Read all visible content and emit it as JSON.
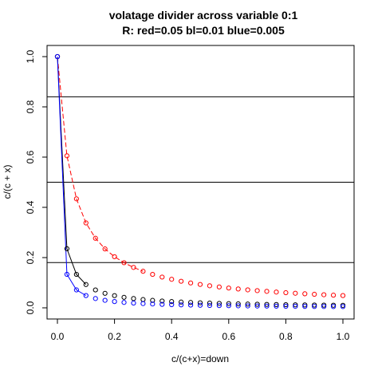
{
  "chart_data": {
    "type": "scatter",
    "title": "volatage divider across variable 0:1",
    "subtitle": "R: red=0.05 bl=0.01 blue=0.005",
    "xlabel": "c/(c+x)=down",
    "ylabel": "c/(c + x)",
    "xlim": [
      0,
      1
    ],
    "ylim": [
      0,
      1
    ],
    "x_ticks": [
      "0.0",
      "0.2",
      "0.4",
      "0.6",
      "0.8",
      "1.0"
    ],
    "y_ticks": [
      "0.0",
      "0.2",
      "0.4",
      "0.6",
      "0.8",
      "1.0"
    ],
    "grid": false,
    "legend": "none",
    "hlines": [
      0.84,
      0.5,
      0.18
    ],
    "x": [
      0,
      0.0333,
      0.0667,
      0.1,
      0.1333,
      0.1667,
      0.2,
      0.2333,
      0.2667,
      0.3,
      0.3333,
      0.3667,
      0.4,
      0.4333,
      0.4667,
      0.5,
      0.5333,
      0.5667,
      0.6,
      0.6333,
      0.6667,
      0.7,
      0.7333,
      0.7667,
      0.8,
      0.8333,
      0.8667,
      0.9,
      0.9333,
      0.9667,
      1.0
    ],
    "series": [
      {
        "color": "#ff0000",
        "line_style": "dashed",
        "line_points": 10,
        "values": [
          1.0,
          0.6052,
          0.4338,
          0.338,
          0.2769,
          0.2345,
          0.2034,
          0.1796,
          0.1608,
          0.1456,
          0.1331,
          0.1225,
          0.1136,
          0.1058,
          0.099,
          0.0931,
          0.0878,
          0.0831,
          0.0788,
          0.075,
          0.0715,
          0.0684,
          0.0655,
          0.0628,
          0.0603,
          0.058,
          0.0559,
          0.0539,
          0.0521,
          0.0503,
          0.0488
        ]
      },
      {
        "color": "#000000",
        "line_style": "solid",
        "line_points": 4,
        "values": [
          1.0,
          0.2353,
          0.1331,
          0.0928,
          0.0712,
          0.0578,
          0.0486,
          0.0419,
          0.0369,
          0.0329,
          0.0297,
          0.0271,
          0.0249,
          0.023,
          0.0214,
          0.02,
          0.0187,
          0.0176,
          0.0167,
          0.0158,
          0.015,
          0.0143,
          0.0137,
          0.0131,
          0.0125,
          0.012,
          0.0116,
          0.0111,
          0.0107,
          0.0104,
          0.01
        ]
      },
      {
        "color": "#0000ff",
        "line_style": "solid",
        "line_points": 4,
        "values": [
          1.0,
          0.1333,
          0.0714,
          0.0488,
          0.037,
          0.0299,
          0.025,
          0.0215,
          0.0189,
          0.0168,
          0.0152,
          0.0139,
          0.0127,
          0.0117,
          0.0109,
          0.0102,
          0.0095,
          0.009,
          0.0085,
          0.008,
          0.0076,
          0.0072,
          0.0069,
          0.0066,
          0.0063,
          0.006,
          0.0058,
          0.0055,
          0.0053,
          0.0051,
          0.005
        ]
      }
    ]
  }
}
